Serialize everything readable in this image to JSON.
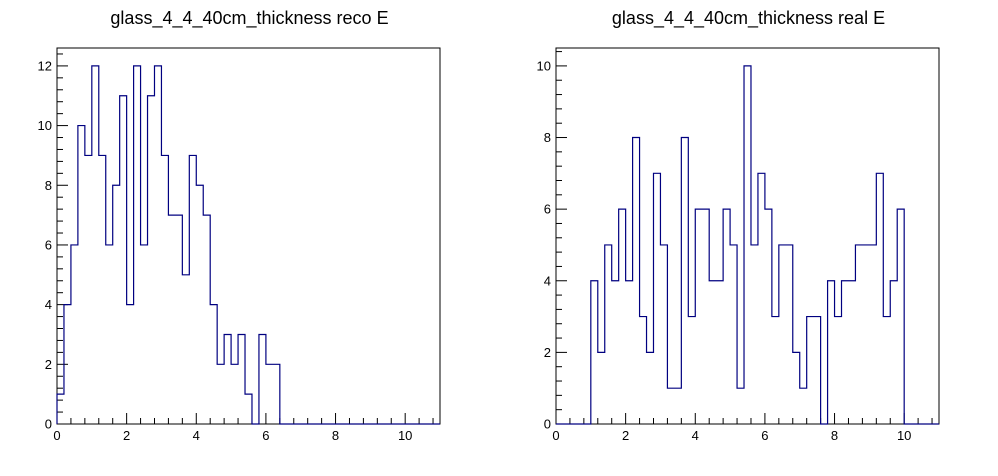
{
  "chart_data": [
    {
      "type": "bar",
      "title": "glass_4_4_40cm_thickness reco E",
      "xlabel": "",
      "ylabel": "",
      "xlim": [
        0,
        11
      ],
      "ylim": [
        0,
        12.6
      ],
      "bin_width": 0.2,
      "xticks": [
        "0",
        "2",
        "4",
        "6",
        "8",
        "10"
      ],
      "yticks": [
        "0",
        "2",
        "4",
        "6",
        "8",
        "10",
        "12"
      ],
      "line_color": "#000080",
      "values": [
        1,
        4,
        6,
        10,
        9,
        12,
        9,
        6,
        8,
        11,
        4,
        12,
        6,
        11,
        12,
        9,
        7,
        7,
        5,
        9,
        8,
        7,
        4,
        2,
        3,
        2,
        3,
        1,
        0,
        3,
        2,
        2,
        0,
        0,
        0,
        0,
        0,
        0,
        0,
        0,
        0,
        0,
        0,
        0,
        0,
        0,
        0,
        0,
        0,
        0,
        0,
        0,
        0,
        0,
        0
      ]
    },
    {
      "type": "bar",
      "title": "glass_4_4_40cm_thickness real E",
      "xlabel": "",
      "ylabel": "",
      "xlim": [
        0,
        11
      ],
      "ylim": [
        0,
        10.5
      ],
      "bin_width": 0.2,
      "xticks": [
        "0",
        "2",
        "4",
        "6",
        "8",
        "10"
      ],
      "yticks": [
        "0",
        "2",
        "4",
        "6",
        "8",
        "10"
      ],
      "line_color": "#000080",
      "values": [
        0,
        0,
        0,
        0,
        0,
        4,
        2,
        5,
        4,
        6,
        4,
        8,
        3,
        2,
        7,
        5,
        1,
        1,
        8,
        3,
        6,
        6,
        4,
        4,
        6,
        5,
        1,
        10,
        5,
        7,
        6,
        3,
        5,
        5,
        2,
        1,
        3,
        3,
        0,
        4,
        3,
        4,
        4,
        5,
        5,
        5,
        7,
        3,
        4,
        6,
        0,
        0,
        0,
        0,
        0
      ]
    }
  ]
}
